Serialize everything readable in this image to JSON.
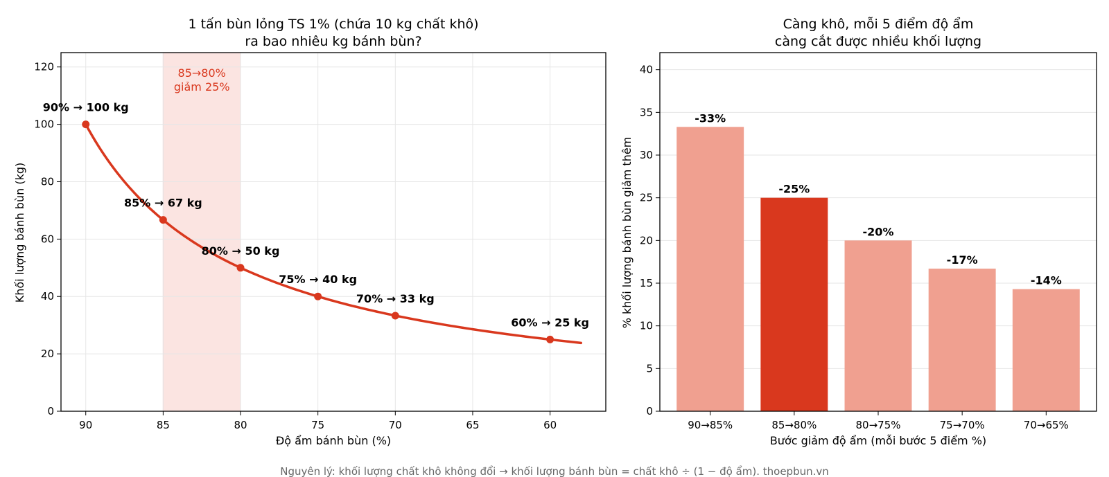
{
  "figure": {
    "footer": "Nguyên lý: khối lượng chất khô không đổi → khối lượng bánh bùn = chất khô ÷ (1 − độ ẩm).  thoepbun.vn"
  },
  "colors": {
    "accent": "#d9381e",
    "bar_light": "#f0a090",
    "highlight_band": "#fbe4e1",
    "grid": "#e6e6e6",
    "footer_text": "#666666"
  },
  "chart_data": [
    {
      "type": "line",
      "title_lines": [
        "1 tấn bùn lỏng TS 1% (chứa 10 kg chất khô)",
        "ra bao nhiêu kg bánh bùn?"
      ],
      "xlabel": "Độ ẩm bánh bùn (%)",
      "ylabel": "Khối lượng bánh bùn (kg)",
      "xlim": [
        91.6,
        56.4
      ],
      "ylim": [
        0,
        125
      ],
      "x_ticks": [
        90,
        85,
        80,
        75,
        70,
        65,
        60
      ],
      "y_ticks": [
        0,
        20,
        40,
        60,
        80,
        100,
        120
      ],
      "grid": true,
      "curve": {
        "x_start": 90,
        "x_end": 58,
        "dry_solids_kg": 10
      },
      "points": [
        {
          "x": 90,
          "y": 100,
          "label": "90% → 100 kg"
        },
        {
          "x": 85,
          "y": 66.7,
          "label": "85% → 67 kg"
        },
        {
          "x": 80,
          "y": 50,
          "label": "80% → 50 kg"
        },
        {
          "x": 75,
          "y": 40,
          "label": "75% → 40 kg"
        },
        {
          "x": 70,
          "y": 33.3,
          "label": "70% → 33 kg"
        },
        {
          "x": 60,
          "y": 25,
          "label": "60% → 25 kg"
        }
      ],
      "highlight": {
        "x_from": 85,
        "x_to": 80,
        "label_lines": [
          "85→80%",
          "giảm 25%"
        ]
      }
    },
    {
      "type": "bar",
      "title_lines": [
        "Càng khô, mỗi 5 điểm độ ẩm",
        "càng cắt được nhiều khối lượng"
      ],
      "xlabel": "Bước giảm độ ẩm (mỗi bước 5 điểm %)",
      "ylabel": "% khối lượng bánh bùn giảm thêm",
      "ylim": [
        0,
        42
      ],
      "y_ticks": [
        0,
        5,
        10,
        15,
        20,
        25,
        30,
        35,
        40
      ],
      "grid": true,
      "categories": [
        "90→85%",
        "85→80%",
        "80→75%",
        "75→70%",
        "70→65%"
      ],
      "values": [
        33.3,
        25,
        20,
        16.7,
        14.3
      ],
      "value_labels": [
        "-33%",
        "-25%",
        "-20%",
        "-17%",
        "-14%"
      ],
      "highlight_index": 1
    }
  ]
}
